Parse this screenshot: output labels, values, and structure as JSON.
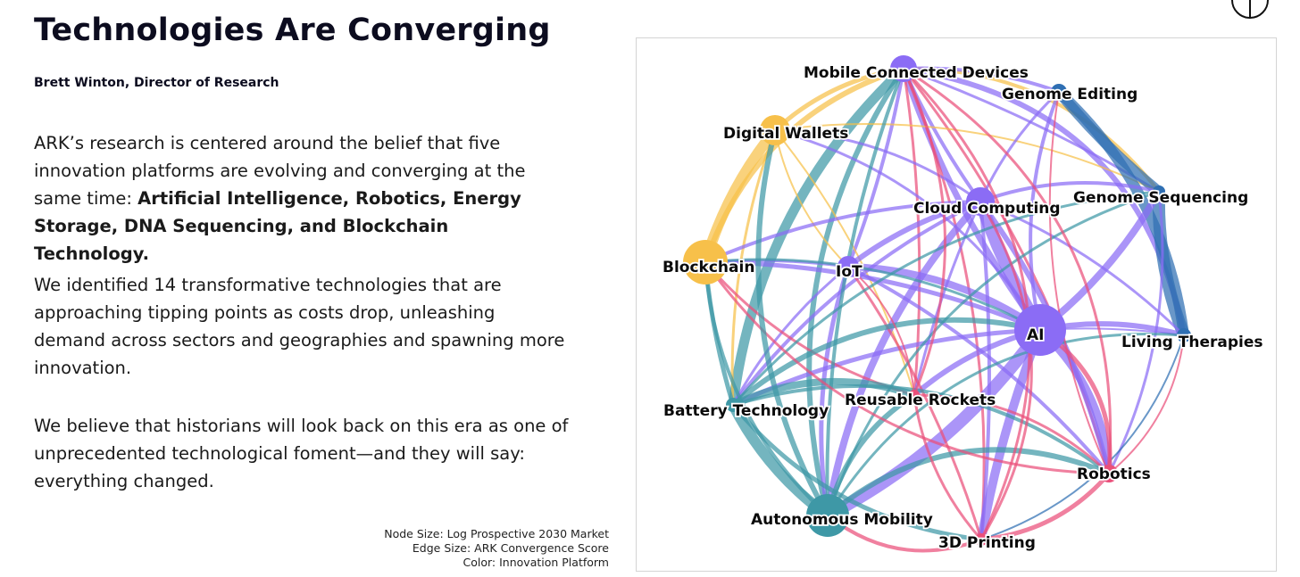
{
  "header": {
    "title": "Technologies Are Converging",
    "author": "Brett Winton, Director of Research"
  },
  "body": {
    "p1_text": "ARK’s research is centered around the belief that five innovation platforms are evolving and converging at the same time: ",
    "p1_bold": "Artificial Intelligence, Robotics, Energy Storage, DNA Sequencing, and Blockchain Technology.",
    "p2": "We identified 14 transformative technologies that are approaching tipping points as costs drop, unleashing demand across sectors and geographies and spawning more innovation.",
    "p3": "We believe that historians will look back on this era as one of unprecedented technological foment—and they will say: everything changed."
  },
  "legend": {
    "node_size": "Node Size: Log Prospective 2030 Market",
    "edge_size": "Edge Size: ARK Convergence Score",
    "color": "Color: Innovation Platform"
  },
  "colors": {
    "ai": "#8b6cf5",
    "blockchain": "#f7c04a",
    "energy": "#3e98a6",
    "dna": "#2f6fb3",
    "robotics": "#ea4f7a"
  },
  "network": {
    "nodes": [
      {
        "id": "mobile",
        "label": "Mobile Connected Devices",
        "platform": "ai"
      },
      {
        "id": "genome_edit",
        "label": "Genome Editing",
        "platform": "dna"
      },
      {
        "id": "wallets",
        "label": "Digital Wallets",
        "platform": "blockchain"
      },
      {
        "id": "cloud",
        "label": "Cloud Computing",
        "platform": "ai"
      },
      {
        "id": "genome_seq",
        "label": "Genome Sequencing",
        "platform": "dna"
      },
      {
        "id": "blockchain",
        "label": "Blockchain",
        "platform": "blockchain"
      },
      {
        "id": "iot",
        "label": "IoT",
        "platform": "ai"
      },
      {
        "id": "ai",
        "label": "AI",
        "platform": "ai"
      },
      {
        "id": "living",
        "label": "Living Therapies",
        "platform": "dna"
      },
      {
        "id": "battery",
        "label": "Battery Technology",
        "platform": "energy"
      },
      {
        "id": "rockets",
        "label": "Reusable Rockets",
        "platform": "robotics"
      },
      {
        "id": "robotics",
        "label": "Robotics",
        "platform": "robotics"
      },
      {
        "id": "auto",
        "label": "Autonomous Mobility",
        "platform": "energy"
      },
      {
        "id": "printing",
        "label": "3D Printing",
        "platform": "robotics"
      }
    ]
  }
}
